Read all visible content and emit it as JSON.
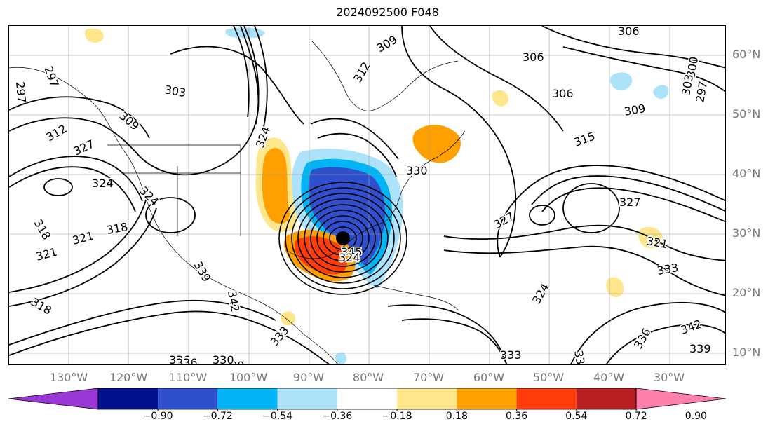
{
  "title": "2024092500 F048",
  "lat_labels": [
    "60°N",
    "50°N",
    "40°N",
    "30°N",
    "20°N",
    "10°N"
  ],
  "lon_labels": [
    "130°W",
    "120°W",
    "110°W",
    "100°W",
    "90°W",
    "80°W",
    "70°W",
    "60°W",
    "50°W",
    "40°W",
    "30°W"
  ],
  "colorbar": {
    "ticks": [
      "−0.90",
      "−0.72",
      "−0.54",
      "−0.36",
      "−0.18",
      "0.18",
      "0.36",
      "0.54",
      "0.72",
      "0.90"
    ],
    "colors": [
      "#9a37d6",
      "#000f8a",
      "#2f4fcd",
      "#00b4f5",
      "#ade2fb",
      "#ffffff",
      "#ffe68b",
      "#ffa000",
      "#ff3c0a",
      "#b81e22",
      "#ff80ab"
    ]
  },
  "contour_labels": [
    "306",
    "306",
    "306",
    "309",
    "309",
    "303",
    "300",
    "297",
    "297",
    "309",
    "312",
    "315",
    "324",
    "321",
    "321",
    "318",
    "318",
    "327",
    "324",
    "324",
    "330",
    "339",
    "342",
    "339",
    "333",
    "333",
    "336",
    "330",
    "336",
    "330",
    "333",
    "327",
    "321",
    "324",
    "327",
    "345",
    "324",
    "318",
    "303",
    "297",
    "312",
    "336",
    "342",
    "339"
  ],
  "colors": {
    "contour": "#000000",
    "axis_text": "#777777"
  }
}
